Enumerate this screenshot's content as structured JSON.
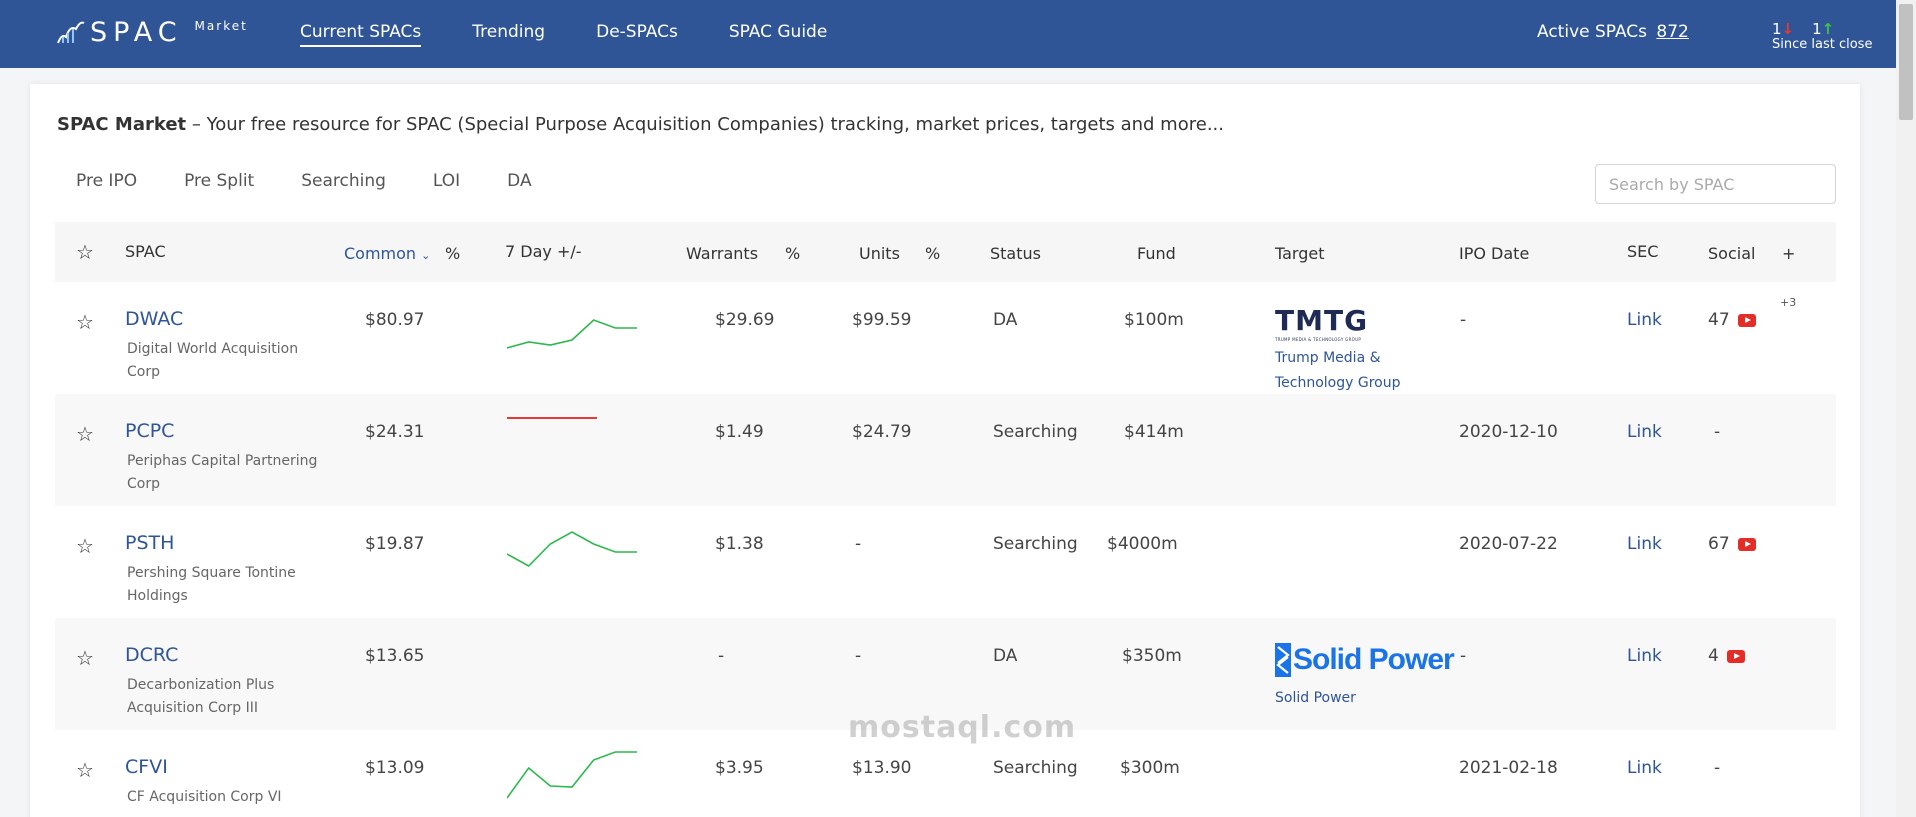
{
  "brand": {
    "name": "SPAC",
    "sub": "Market"
  },
  "nav": [
    {
      "label": "Current SPACs",
      "active": true
    },
    {
      "label": "Trending"
    },
    {
      "label": "De-SPACs"
    },
    {
      "label": "SPAC Guide"
    }
  ],
  "stats": {
    "active_label": "Active SPACs",
    "active_count": "872",
    "down_count": "1",
    "up_count": "1",
    "since_label": "Since last close"
  },
  "intro": {
    "bold": "SPAC Market",
    "text": " – Your free resource for SPAC (Special Purpose Acquisition Companies) tracking, market prices, targets and more..."
  },
  "filters": [
    "Pre IPO",
    "Pre Split",
    "Searching",
    "LOI",
    "DA"
  ],
  "search": {
    "placeholder": "Search by SPAC"
  },
  "columns": {
    "spac": "SPAC",
    "common": "Common",
    "common_pct": "%",
    "seven_day": "7 Day +/-",
    "warrants": "Warrants",
    "warrants_pct": "%",
    "units": "Units",
    "units_pct": "%",
    "status": "Status",
    "fund": "Fund",
    "target": "Target",
    "ipo_date": "IPO Date",
    "sec": "SEC",
    "social": "Social",
    "more": "+"
  },
  "rows": [
    {
      "ticker": "DWAC",
      "name": "Digital World Acquisition Corp",
      "common": "$80.97",
      "spark": [
        48,
        42,
        45,
        40,
        20,
        28,
        28
      ],
      "spark_color": "#2db84d",
      "warrants": "$29.69",
      "units": "$99.59",
      "status": "DA",
      "fund": "$100m",
      "target_logo": "TMTG",
      "target_logo_sub": "TRUMP MEDIA & TECHNOLOGY GROUP",
      "target_name": "Trump Media & Technology Group",
      "ipo_date": "-",
      "sec": "Link",
      "social": "47",
      "social_icon": "youtube-icon",
      "extra": "+3"
    },
    {
      "ticker": "PCPC",
      "name": "Periphas Capital Partnering Corp",
      "common": "$24.31",
      "spark": [
        14,
        14,
        14,
        14,
        14
      ],
      "spark_color": "#e53935",
      "warrants": "$1.49",
      "units": "$24.79",
      "status": "Searching",
      "fund": "$414m",
      "ipo_date": "2020-12-10",
      "sec": "Link",
      "social": "-"
    },
    {
      "ticker": "PSTH",
      "name": "Pershing Square Tontine Holdings",
      "common": "$19.87",
      "spark": [
        40,
        52,
        30,
        18,
        30,
        38,
        38
      ],
      "spark_color": "#2db84d",
      "warrants": "$1.38",
      "units": "-",
      "status": "Searching",
      "fund": "$4000m",
      "ipo_date": "2020-07-22",
      "sec": "Link",
      "social": "67",
      "social_icon": "youtube-icon"
    },
    {
      "ticker": "DCRC",
      "name": "Decarbonization Plus Acquisition Corp III",
      "common": "$13.65",
      "spark": [],
      "warrants": "-",
      "units": "-",
      "status": "DA",
      "fund": "$350m",
      "target_logo": "Solid Power",
      "target_name": "Solid Power",
      "ipo_date": "-",
      "sec": "Link",
      "social": "4",
      "social_icon": "youtube-icon"
    },
    {
      "ticker": "CFVI",
      "name": "CF Acquisition Corp VI",
      "common": "$13.09",
      "spark": [
        48,
        18,
        36,
        37,
        10,
        2,
        2
      ],
      "spark_color": "#2db84d",
      "warrants": "$3.95",
      "units": "$13.90",
      "status": "Searching",
      "fund": "$300m",
      "ipo_date": "2021-02-18",
      "sec": "Link",
      "social": "-"
    }
  ],
  "watermark": "mostaql.com"
}
